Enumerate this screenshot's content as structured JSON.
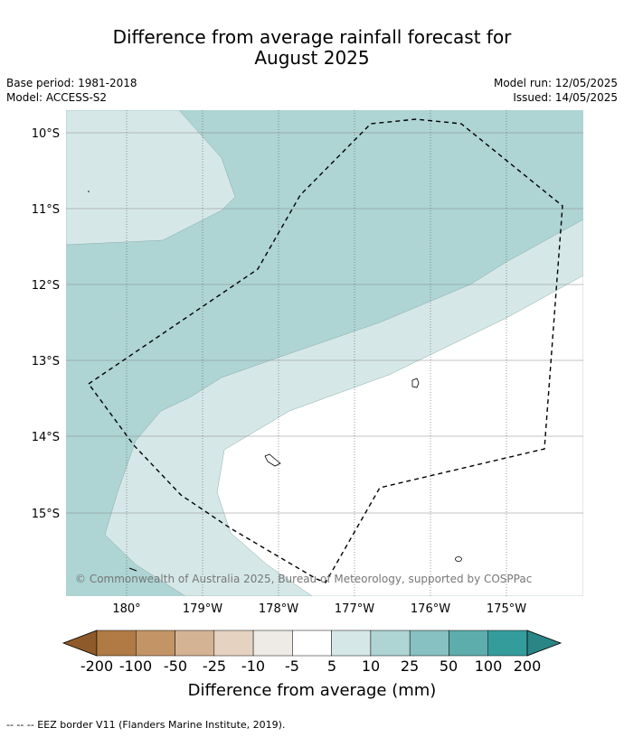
{
  "title_line1": "Difference from average rainfall forecast for",
  "title_line2": "August 2025",
  "meta_left": {
    "base_period": "Base period: 1981-2018",
    "model": "Model: ACCESS-S2"
  },
  "meta_right": {
    "model_run": "Model run: 12/05/2025",
    "issued": "Issued: 14/05/2025"
  },
  "lat_labels": [
    "10°S",
    "11°S",
    "12°S",
    "13°S",
    "14°S",
    "15°S"
  ],
  "lon_labels": [
    "180°",
    "179°W",
    "178°W",
    "177°W",
    "176°W",
    "175°W"
  ],
  "copyright": "© Commonwealth of Australia 2025, Bureau of Meteorology, supported by COSPPac",
  "colorbar": {
    "ticks": [
      "-200",
      "-100",
      "-50",
      "-25",
      "-10",
      "-5",
      "5",
      "10",
      "25",
      "50",
      "100",
      "200"
    ],
    "label": "Difference from average (mm)",
    "colors": {
      "below_min": "#8f5a2a",
      "bins": [
        "#b07a44",
        "#c39566",
        "#d4b394",
        "#e5d2c1",
        "#eeeae6",
        "#ffffff",
        "#d5e8e7",
        "#aed4d4",
        "#87c1c1",
        "#5eadad",
        "#359c9c"
      ],
      "above_max": "#2a8585"
    }
  },
  "map_colors": {
    "light": "#d5e8e7",
    "medium": "#aed4d4",
    "none": "#ffffff"
  },
  "legend_note": "--  --  -- EEZ border V11 (Flanders Marine Institute, 2019)."
}
